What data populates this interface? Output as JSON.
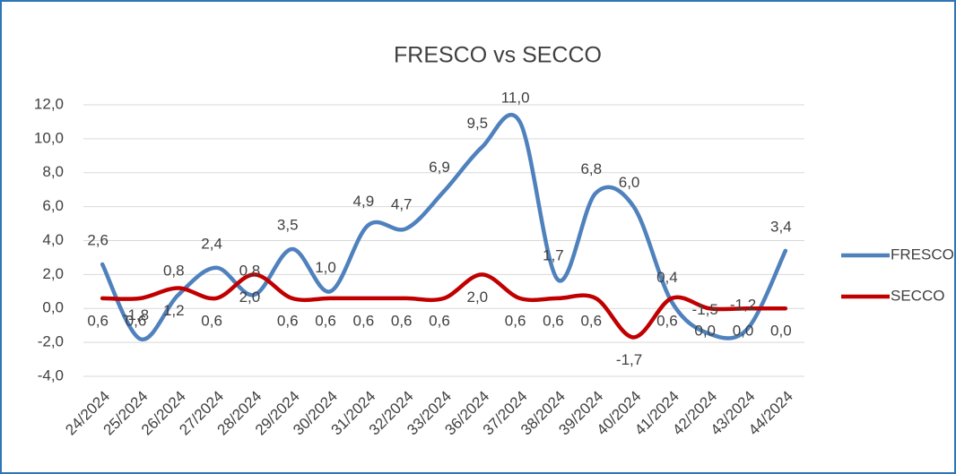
{
  "chart_data": {
    "type": "line",
    "title": "FRESCO vs SECCO",
    "categories": [
      "24/2024",
      "25/2024",
      "26/2024",
      "27/2024",
      "28/2024",
      "29/2024",
      "30/2024",
      "31/2024",
      "32/2024",
      "33/2024",
      "36/2024",
      "37/2024",
      "38/2024",
      "39/2024",
      "40/2024",
      "41/2024",
      "42/2024",
      "43/2024",
      "44/2024"
    ],
    "series": [
      {
        "name": "FRESCO",
        "color": "#4f81bd",
        "values": [
          2.6,
          -1.8,
          0.8,
          2.4,
          0.8,
          3.5,
          1.0,
          4.9,
          4.7,
          6.9,
          9.5,
          11.0,
          1.7,
          6.8,
          6.0,
          0.4,
          -1.5,
          -1.2,
          3.4
        ],
        "value_labels": [
          "2,6",
          "-1,8",
          "0,8",
          "2,4",
          "0,8",
          "3,5",
          "1,0",
          "4,9",
          "4,7",
          "6,9",
          "9,5",
          "11,0",
          "1,7",
          "6,8",
          "6,0",
          "0,4",
          "-1,5",
          "-1,2",
          "3,4"
        ]
      },
      {
        "name": "SECCO",
        "color": "#c00000",
        "values": [
          0.6,
          0.6,
          1.2,
          0.6,
          2.0,
          0.6,
          0.6,
          0.6,
          0.6,
          0.6,
          2.0,
          0.6,
          0.6,
          0.6,
          -1.7,
          0.6,
          0.0,
          0.0,
          0.0
        ],
        "value_labels": [
          "0,6",
          "0,6",
          "1,2",
          "0,6",
          "2,0",
          "0,6",
          "0,6",
          "0,6",
          "0,6",
          "0,6",
          "2,0",
          "0,6",
          "0,6",
          "0,6",
          "-1,7",
          "0,6",
          "0,0",
          "0,0",
          "0,0"
        ]
      }
    ],
    "ylim": [
      -4,
      12
    ],
    "yticks": [
      {
        "value": -4,
        "label": "-4,0"
      },
      {
        "value": -2,
        "label": "-2,0"
      },
      {
        "value": 0,
        "label": "0,0"
      },
      {
        "value": 2,
        "label": "2,0"
      },
      {
        "value": 4,
        "label": "4,0"
      },
      {
        "value": 6,
        "label": "6,0"
      },
      {
        "value": 8,
        "label": "8,0"
      },
      {
        "value": 10,
        "label": "10,0"
      },
      {
        "value": 12,
        "label": "12,0"
      }
    ],
    "grid": true,
    "legend": "right",
    "smooth": true
  }
}
